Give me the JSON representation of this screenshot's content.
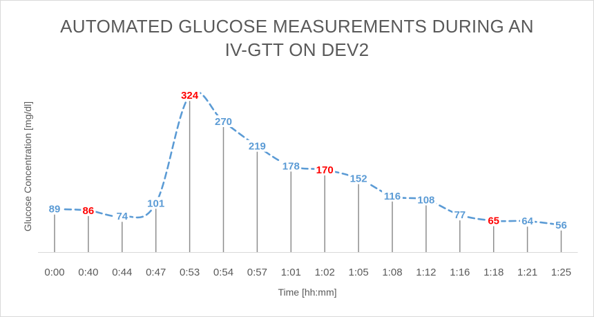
{
  "chart_data": {
    "type": "line",
    "title_lines": [
      "AUTOMATED GLUCOSE MEASUREMENTS DURING AN",
      "IV-GTT ON DEV2"
    ],
    "xlabel": "Time [hh:mm]",
    "ylabel": "Glucose Concentration [mg/dl]",
    "categories": [
      "0:00",
      "0:40",
      "0:44",
      "0:47",
      "0:53",
      "0:54",
      "0:57",
      "1:01",
      "1:02",
      "1:05",
      "1:08",
      "1:12",
      "1:16",
      "1:18",
      "1:21",
      "1:25"
    ],
    "series": [
      {
        "values": [
          89,
          86,
          74,
          101,
          324,
          270,
          219,
          178,
          170,
          152,
          116,
          108,
          77,
          65,
          64,
          56
        ]
      }
    ],
    "highlighted_indices": [
      1,
      4,
      8,
      13
    ],
    "ylim": [
      0,
      340
    ],
    "grid": false,
    "drop_lines": true,
    "line_style": "dashed-smooth",
    "colors": {
      "line": "#5b9bd5",
      "label_default": "#5b9bd5",
      "label_highlight": "#ff0000",
      "drop_line": "#8c8c8c",
      "axis": "#d9d9d9"
    }
  }
}
